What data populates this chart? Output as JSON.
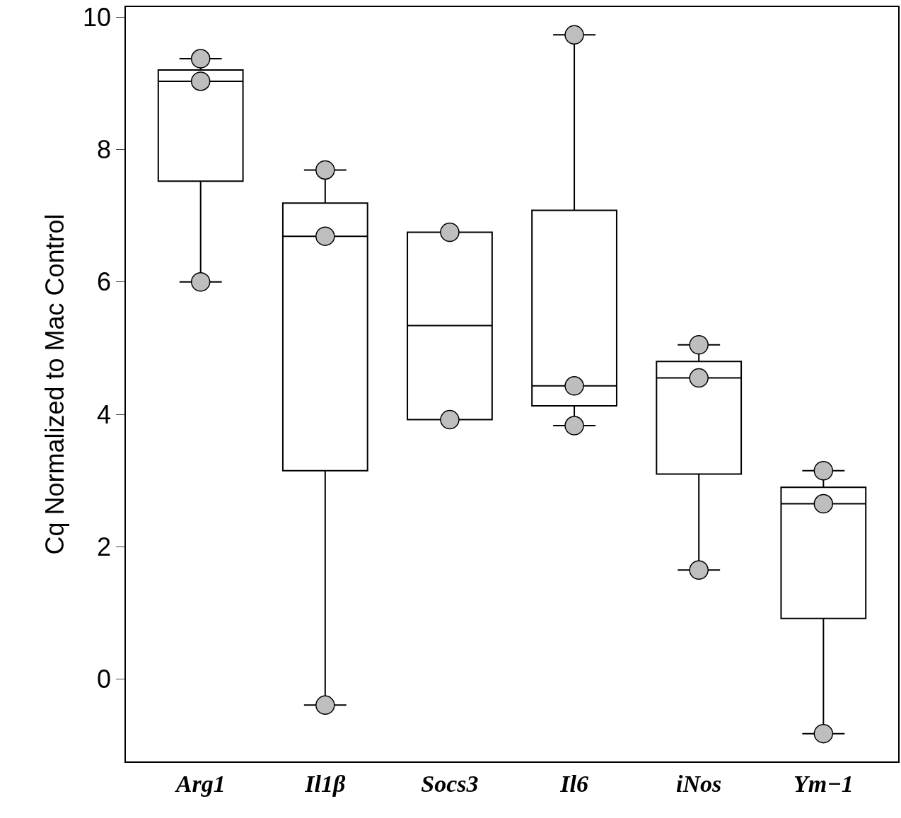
{
  "chart_data": {
    "type": "box",
    "ylabel": "Cq Normalized to Mac Control",
    "categories": [
      "Arg1",
      "Il1β",
      "Socs3",
      "Il6",
      "iNos",
      "Ym−1"
    ],
    "ylim": [
      -1.24,
      10.15
    ],
    "yticks": [
      0,
      2,
      4,
      6,
      8,
      10
    ],
    "series": [
      {
        "color": "#000000",
        "boxes": [
          {
            "low": 6.0,
            "q1": 7.52,
            "median": 9.03,
            "q3": 9.2,
            "high": 9.37
          },
          {
            "low": -0.39,
            "q1": 3.15,
            "median": 6.69,
            "q3": 7.19,
            "high": 7.69
          },
          {
            "low": 3.92,
            "q1": 3.92,
            "median": 5.34,
            "q3": 6.75,
            "high": 6.75
          },
          {
            "low": 3.83,
            "q1": 4.13,
            "median": 4.43,
            "q3": 7.08,
            "high": 9.73
          },
          {
            "low": 1.65,
            "q1": 3.1,
            "median": 4.55,
            "q3": 4.8,
            "high": 5.05
          },
          {
            "low": -0.82,
            "q1": 0.92,
            "median": 2.65,
            "q3": 2.9,
            "high": 3.15
          }
        ]
      },
      {
        "type": "scatter",
        "color": "#bebebe",
        "x": [
          "Arg1",
          "Arg1",
          "Arg1",
          "Il1β",
          "Il1β",
          "Il1β",
          "Socs3",
          "Socs3",
          "Il6",
          "Il6",
          "Il6",
          "iNos",
          "iNos",
          "iNos",
          "Ym−1",
          "Ym−1",
          "Ym−1"
        ],
        "values": [
          9.37,
          9.03,
          6.0,
          7.69,
          6.69,
          -0.39,
          6.75,
          3.92,
          9.73,
          4.43,
          3.83,
          5.05,
          4.55,
          1.65,
          3.15,
          2.65,
          -0.82
        ]
      }
    ]
  }
}
